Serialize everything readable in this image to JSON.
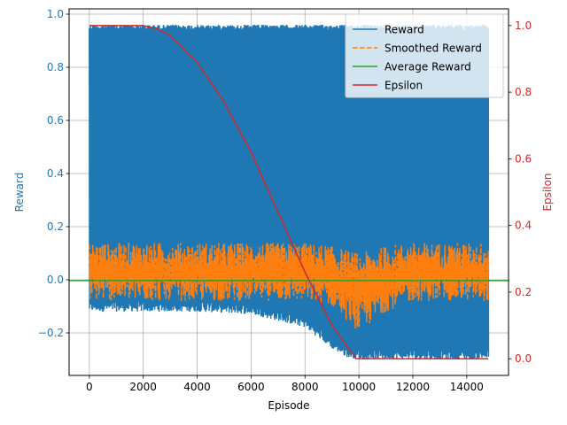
{
  "chart_data": {
    "type": "line",
    "title": "",
    "xlabel": "Episode",
    "ylabel_left": "Reward",
    "ylabel_right": "Epsilon",
    "xlim": [
      -750,
      15550
    ],
    "ylim_left": [
      -0.36,
      1.02
    ],
    "ylim_right": [
      -0.05,
      1.05
    ],
    "x_ticks": [
      0,
      2000,
      4000,
      6000,
      8000,
      10000,
      12000,
      14000
    ],
    "x_tick_labels": [
      "0",
      "2000",
      "4000",
      "6000",
      "8000",
      "10000",
      "12000",
      "14000"
    ],
    "y_left_ticks": [
      -0.2,
      0.0,
      0.2,
      0.4,
      0.6,
      0.8,
      1.0
    ],
    "y_left_tick_labels": [
      "−0.2",
      "0.0",
      "0.2",
      "0.4",
      "0.6",
      "0.8",
      "1.0"
    ],
    "y_right_ticks": [
      0.0,
      0.2,
      0.4,
      0.6,
      0.8,
      1.0
    ],
    "y_right_tick_labels": [
      "0.0",
      "0.2",
      "0.4",
      "0.6",
      "0.8",
      "1.0"
    ],
    "grid": true,
    "legend_placement": "top-right",
    "colors": {
      "left_axis": "#1f77b4",
      "right_axis": "#d62728"
    },
    "series": [
      {
        "name": "Reward",
        "axis": "left",
        "style": "solid",
        "color": "#1f77b4",
        "band_x": [
          0,
          2000,
          4000,
          6000,
          8000,
          8500,
          9000,
          9500,
          10000,
          10500,
          11000,
          12000,
          13000,
          14000,
          14800
        ],
        "band_upper": [
          0.96,
          0.96,
          0.96,
          0.96,
          0.96,
          0.96,
          0.96,
          0.96,
          0.96,
          0.96,
          0.96,
          0.96,
          0.96,
          0.96,
          0.96
        ],
        "band_lower": [
          -0.12,
          -0.12,
          -0.12,
          -0.13,
          -0.18,
          -0.22,
          -0.26,
          -0.29,
          -0.3,
          -0.3,
          -0.3,
          -0.3,
          -0.3,
          -0.3,
          -0.3
        ]
      },
      {
        "name": "Smoothed Reward",
        "axis": "left",
        "style": "dashed",
        "color": "#ff7f0e",
        "band_x": [
          0,
          2000,
          4000,
          6000,
          8000,
          9000,
          10000,
          11000,
          12000,
          13000,
          14000,
          14800
        ],
        "band_upper": [
          0.14,
          0.14,
          0.14,
          0.14,
          0.14,
          0.13,
          0.1,
          0.13,
          0.14,
          0.14,
          0.14,
          0.14
        ],
        "band_lower": [
          -0.08,
          -0.08,
          -0.08,
          -0.08,
          -0.08,
          -0.1,
          -0.2,
          -0.12,
          -0.08,
          -0.08,
          -0.08,
          -0.08
        ]
      },
      {
        "name": "Average Reward",
        "axis": "left",
        "style": "solid",
        "color": "#2ca02c",
        "x": [
          -750,
          15550
        ],
        "values": [
          -0.003,
          -0.003
        ]
      },
      {
        "name": "Epsilon",
        "axis": "right",
        "style": "solid",
        "color": "#d62728",
        "x": [
          0,
          2000,
          2500,
          3000,
          4000,
          5000,
          6000,
          7000,
          8000,
          9000,
          9900,
          10500,
          12000,
          14000,
          14800
        ],
        "values": [
          1.0,
          1.0,
          0.99,
          0.97,
          0.89,
          0.77,
          0.62,
          0.44,
          0.26,
          0.1,
          0.0,
          0.0,
          0.0,
          0.0,
          0.0
        ]
      }
    ]
  }
}
